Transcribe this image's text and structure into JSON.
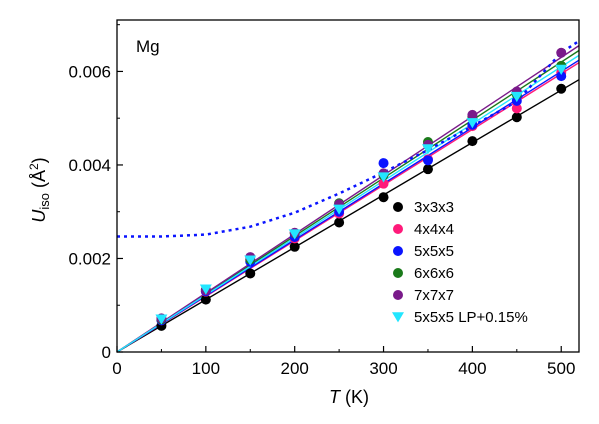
{
  "chart_data": {
    "type": "scatter",
    "panel_label": "Mg",
    "xlabel": {
      "italic": "T",
      "rest": " (K)"
    },
    "ylabel": {
      "italic": "U",
      "subscript": "iso",
      "rest": " (Å",
      "superscript": "2",
      "close": ")"
    },
    "xlim": [
      0,
      520
    ],
    "ylim": [
      0,
      0.0071
    ],
    "xticks": [
      0,
      100,
      200,
      300,
      400,
      500
    ],
    "xtick_labels": [
      "0",
      "100",
      "200",
      "300",
      "400",
      "500"
    ],
    "yticks": [
      0,
      0.002,
      0.004,
      0.006
    ],
    "ytick_labels": [
      "0",
      "0.002",
      "0.004",
      "0.006"
    ],
    "grid": false,
    "legend_position": "lower-right",
    "x": [
      50,
      100,
      150,
      200,
      250,
      300,
      350,
      400,
      450,
      500
    ],
    "series": [
      {
        "name": "3x3x3",
        "color": "#000000",
        "marker": "circle",
        "values": [
          0.00056,
          0.00112,
          0.00168,
          0.00225,
          0.00277,
          0.00331,
          0.00391,
          0.00451,
          0.00502,
          0.00563
        ],
        "fit_slope": 1.12e-05
      },
      {
        "name": "4x4x4",
        "color": "#ff1a7a",
        "marker": "circle",
        "values": [
          0.00068,
          0.00129,
          0.00196,
          0.00243,
          0.00296,
          0.0036,
          0.00412,
          0.00483,
          0.00521,
          0.00597
        ],
        "fit_slope": 1.19e-05
      },
      {
        "name": "5x5x5",
        "color": "#0a14ff",
        "marker": "circle",
        "values": [
          0.00068,
          0.0013,
          0.00193,
          0.00246,
          0.003,
          0.00404,
          0.0041,
          0.00486,
          0.00537,
          0.0059
        ],
        "fit_slope": 1.2e-05
      },
      {
        "name": "6x6x6",
        "color": "#1a7a1a",
        "marker": "circle",
        "values": [
          0.0007,
          0.00133,
          0.00198,
          0.00254,
          0.00318,
          0.00378,
          0.00449,
          0.00503,
          0.00551,
          0.00612
        ],
        "fit_slope": 1.24e-05
      },
      {
        "name": "7x7x7",
        "color": "#7a1a8a",
        "marker": "circle",
        "values": [
          0.00072,
          0.00132,
          0.00203,
          0.00255,
          0.00316,
          0.00382,
          0.00443,
          0.00507,
          0.00557,
          0.0064
        ],
        "fit_slope": 1.26e-05
      },
      {
        "name": "5x5x5 LP+0.15%",
        "color": "#22e6ff",
        "marker": "triangle-down",
        "values": [
          0.0007,
          0.00134,
          0.00196,
          0.00252,
          0.00305,
          0.00374,
          0.00434,
          0.0049,
          0.00546,
          0.00604
        ],
        "fit_slope": 1.22e-05
      }
    ],
    "dashed_curve": {
      "color": "#0a14ff",
      "x": [
        0,
        50,
        100,
        150,
        200,
        250,
        300,
        350,
        400,
        450,
        500,
        520
      ],
      "values": [
        0.00247,
        0.00247,
        0.00251,
        0.00268,
        0.00298,
        0.00339,
        0.00384,
        0.00432,
        0.00483,
        0.00536,
        0.0064,
        0.00665
      ]
    }
  }
}
